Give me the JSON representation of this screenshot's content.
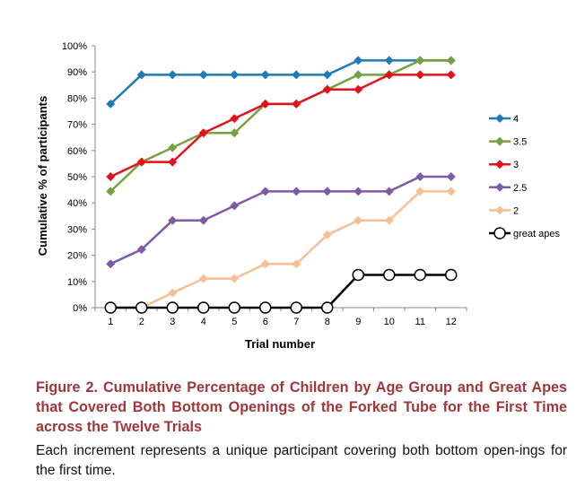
{
  "chart_data": {
    "type": "line",
    "xlabel": "Trial number",
    "ylabel": "Cumulative % of participants",
    "x": [
      1,
      2,
      3,
      4,
      5,
      6,
      7,
      8,
      9,
      10,
      11,
      12
    ],
    "ylim": [
      0,
      100
    ],
    "y_ticks": [
      "0%",
      "10%",
      "20%",
      "30%",
      "40%",
      "50%",
      "60%",
      "70%",
      "80%",
      "90%",
      "100%"
    ],
    "x_ticks": [
      "1",
      "2",
      "3",
      "4",
      "5",
      "6",
      "7",
      "8",
      "9",
      "10",
      "11",
      "12"
    ],
    "grid": false,
    "legend_position": "right",
    "series": [
      {
        "name": "4",
        "color": "#1f7ab5",
        "marker": "diamond",
        "values": [
          77.8,
          88.9,
          88.9,
          88.9,
          88.9,
          88.9,
          88.9,
          88.9,
          94.4,
          94.4,
          94.4,
          94.4
        ]
      },
      {
        "name": "3.5",
        "color": "#77a040",
        "marker": "diamond",
        "values": [
          44.4,
          55.6,
          61.1,
          66.7,
          66.7,
          77.8,
          77.8,
          83.3,
          88.9,
          88.9,
          94.4,
          94.4
        ]
      },
      {
        "name": "3",
        "color": "#e3111b",
        "marker": "diamond",
        "values": [
          50.0,
          55.6,
          55.6,
          66.7,
          72.2,
          77.8,
          77.8,
          83.3,
          83.3,
          88.9,
          88.9,
          88.9
        ]
      },
      {
        "name": "2.5",
        "color": "#7f5aa6",
        "marker": "diamond",
        "values": [
          16.7,
          22.2,
          33.3,
          33.3,
          38.9,
          44.4,
          44.4,
          44.4,
          44.4,
          44.4,
          50.0,
          50.0
        ]
      },
      {
        "name": "2",
        "color": "#f9bf94",
        "marker": "diamond",
        "values": [
          0.0,
          0.0,
          5.6,
          11.1,
          11.1,
          16.7,
          16.7,
          27.8,
          33.3,
          33.3,
          44.4,
          44.4
        ]
      },
      {
        "name": "great apes",
        "color": "#000000",
        "marker": "circle",
        "values": [
          0.0,
          0.0,
          0.0,
          0.0,
          0.0,
          0.0,
          0.0,
          0.0,
          12.5,
          12.5,
          12.5,
          12.5
        ]
      }
    ]
  },
  "caption": {
    "title": "Figure 2. Cumulative Percentage of Children by Age Group and Great Apes that Covered Both Bottom Openings of the Forked Tube for the First Time across the Twelve Trials",
    "body": "Each increment represents a unique participant covering both bottom open-ings for the first time."
  }
}
